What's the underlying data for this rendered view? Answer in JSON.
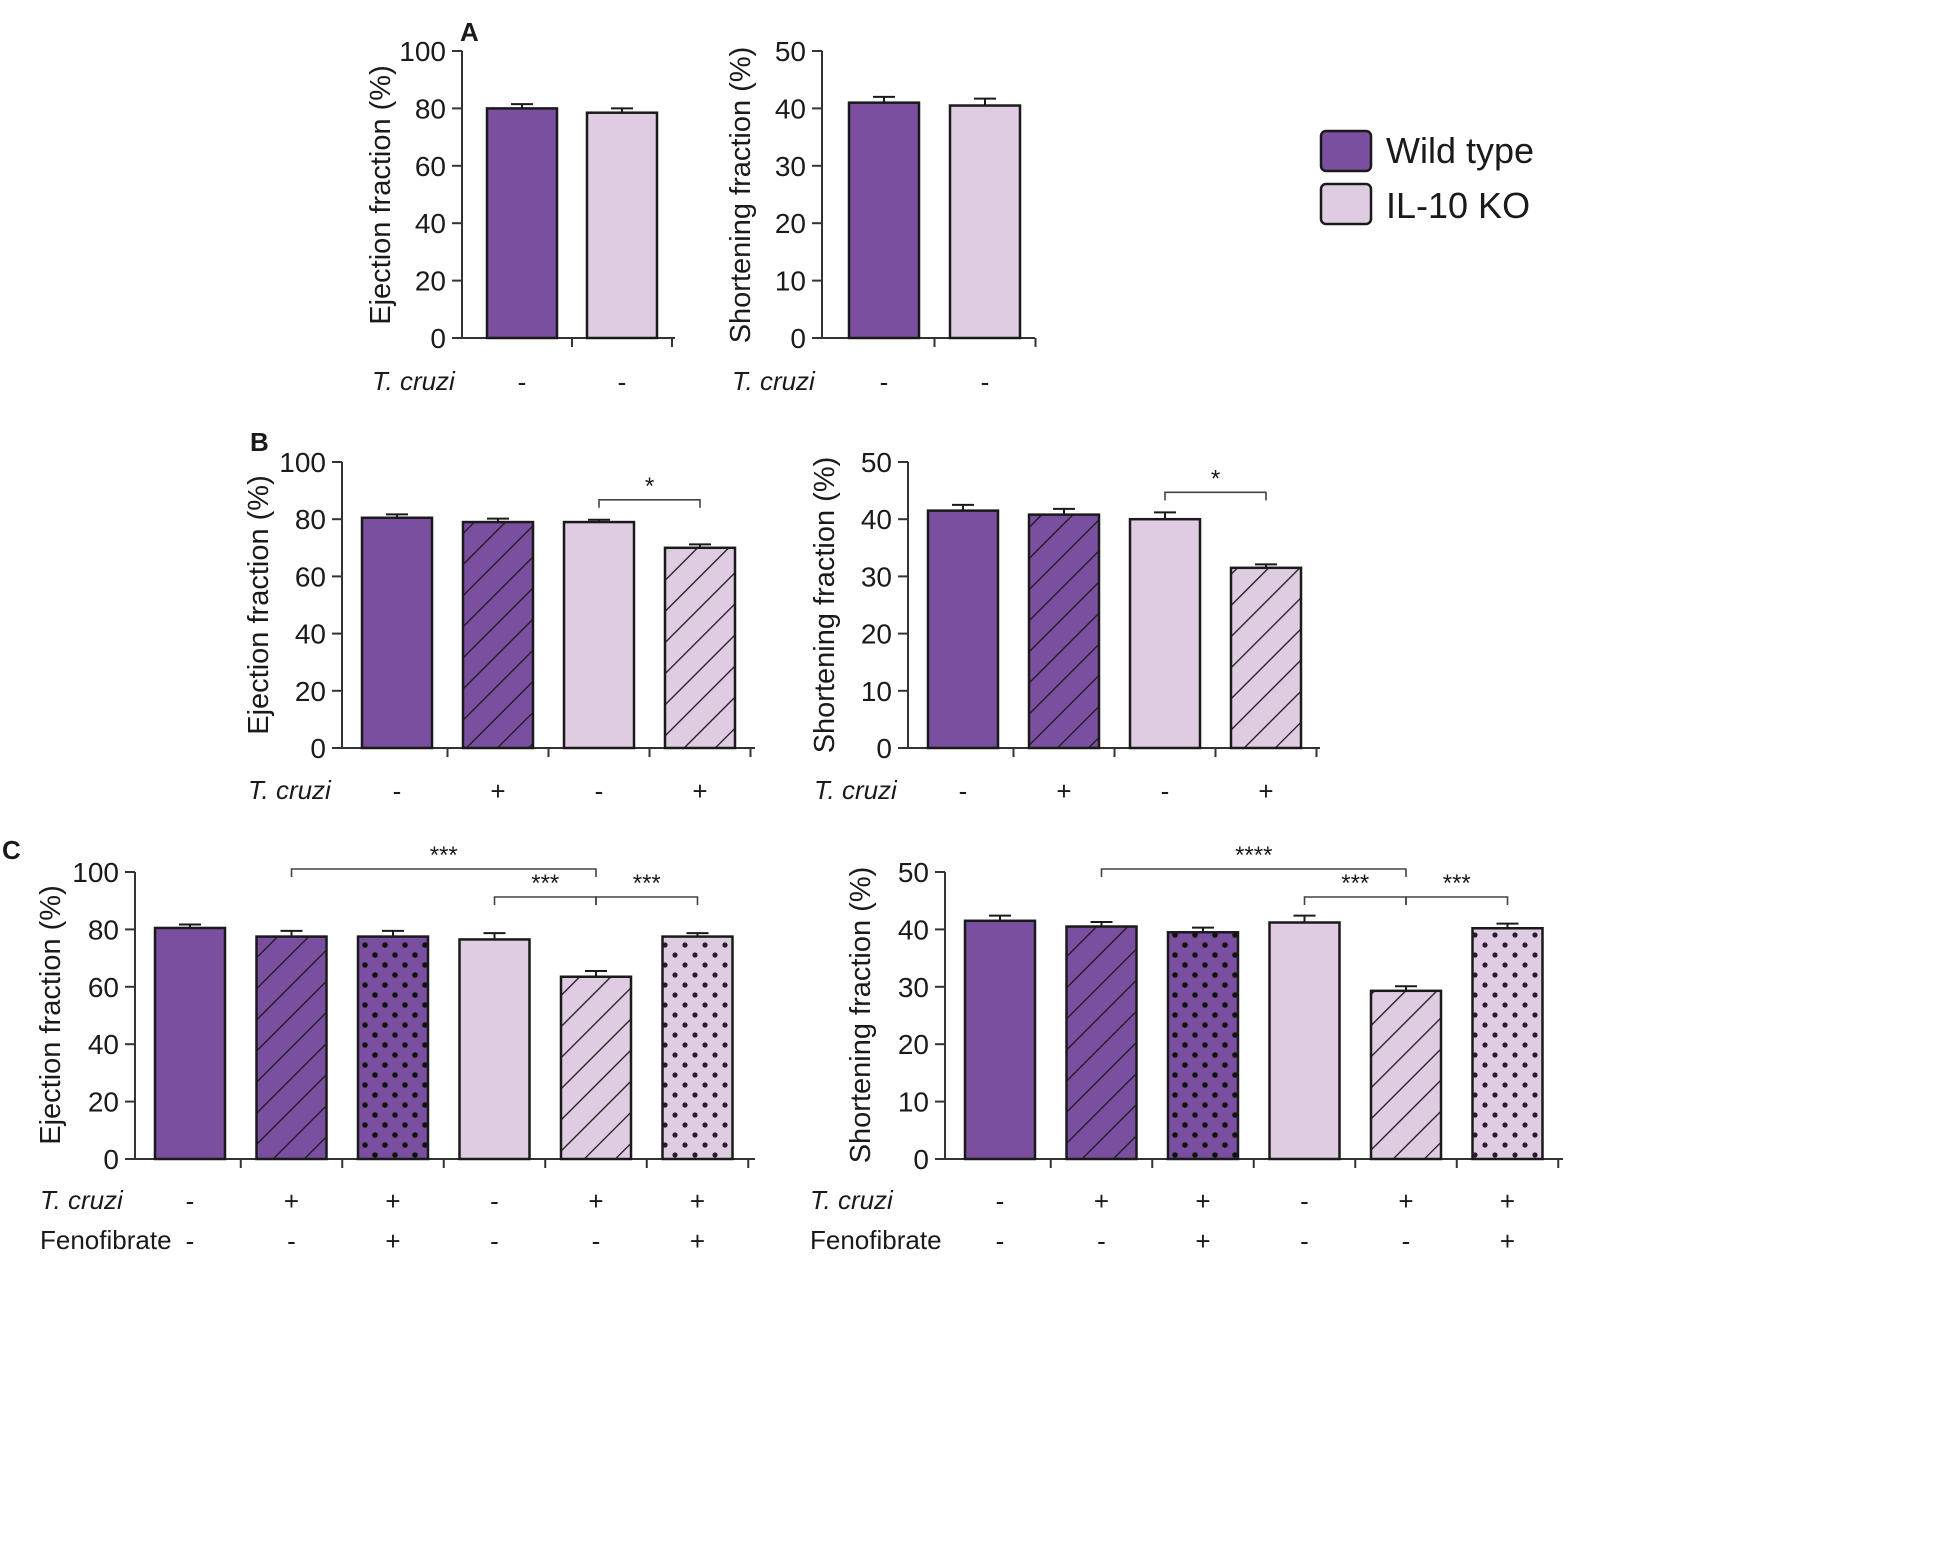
{
  "figure": {
    "colors": {
      "wild_type": "#7a4fa0",
      "il10_ko": "#e0cce2",
      "stroke": "#1a1a1a",
      "axis": "#333333"
    },
    "legend": {
      "items": [
        {
          "label": "Wild type",
          "color": "#7a4fa0"
        },
        {
          "label": "IL-10 KO",
          "color": "#e0cce2"
        }
      ]
    }
  },
  "chart_data": [
    {
      "panel": "A",
      "type": "bar",
      "ylabel": "Ejection fraction (%)",
      "ylim": [
        0,
        100
      ],
      "yticks": [
        0,
        20,
        40,
        60,
        80,
        100
      ],
      "bars": [
        {
          "value": 80,
          "error": 1.5,
          "fill": "#7a4fa0",
          "pattern": "solid"
        },
        {
          "value": 78.5,
          "error": 1.5,
          "fill": "#e0cce2",
          "pattern": "solid"
        }
      ],
      "rows": [
        {
          "label": "T. cruzi",
          "italic": true,
          "signs": [
            "-",
            "-"
          ]
        }
      ],
      "significance": []
    },
    {
      "panel": "",
      "type": "bar",
      "ylabel": "Shortening fraction (%)",
      "ylim": [
        0,
        50
      ],
      "yticks": [
        0,
        10,
        20,
        30,
        40,
        50
      ],
      "bars": [
        {
          "value": 41,
          "error": 1,
          "fill": "#7a4fa0",
          "pattern": "solid"
        },
        {
          "value": 40.5,
          "error": 1.2,
          "fill": "#e0cce2",
          "pattern": "solid"
        }
      ],
      "rows": [
        {
          "label": "T. cruzi",
          "italic": true,
          "signs": [
            "-",
            "-"
          ]
        }
      ],
      "significance": []
    },
    {
      "panel": "B",
      "type": "bar",
      "ylabel": "Ejection fraction (%)",
      "ylim": [
        0,
        100
      ],
      "yticks": [
        0,
        20,
        40,
        60,
        80,
        100
      ],
      "bars": [
        {
          "value": 80.5,
          "error": 1.2,
          "fill": "#7a4fa0",
          "pattern": "solid"
        },
        {
          "value": 79,
          "error": 1.2,
          "fill": "#7a4fa0",
          "pattern": "hatch"
        },
        {
          "value": 79,
          "error": 0.8,
          "fill": "#e0cce2",
          "pattern": "solid"
        },
        {
          "value": 70,
          "error": 1.2,
          "fill": "#e0cce2",
          "pattern": "hatch"
        }
      ],
      "rows": [
        {
          "label": "T. cruzi",
          "italic": true,
          "signs": [
            "-",
            "+",
            "-",
            "+"
          ]
        }
      ],
      "significance": [
        {
          "from": 2,
          "to": 3,
          "label": "*",
          "level": 1
        }
      ]
    },
    {
      "panel": "",
      "type": "bar",
      "ylabel": "Shortening fraction (%)",
      "ylim": [
        0,
        50
      ],
      "yticks": [
        0,
        10,
        20,
        30,
        40,
        50
      ],
      "bars": [
        {
          "value": 41.5,
          "error": 1,
          "fill": "#7a4fa0",
          "pattern": "solid"
        },
        {
          "value": 40.8,
          "error": 1,
          "fill": "#7a4fa0",
          "pattern": "hatch"
        },
        {
          "value": 40,
          "error": 1.2,
          "fill": "#e0cce2",
          "pattern": "solid"
        },
        {
          "value": 31.5,
          "error": 0.6,
          "fill": "#e0cce2",
          "pattern": "hatch"
        }
      ],
      "rows": [
        {
          "label": "T. cruzi",
          "italic": true,
          "signs": [
            "-",
            "+",
            "-",
            "+"
          ]
        }
      ],
      "significance": [
        {
          "from": 2,
          "to": 3,
          "label": "*",
          "level": 1
        }
      ]
    },
    {
      "panel": "C",
      "type": "bar",
      "ylabel": "Ejection fraction (%)",
      "ylim": [
        0,
        100
      ],
      "yticks": [
        0,
        20,
        40,
        60,
        80,
        100
      ],
      "bars": [
        {
          "value": 80.5,
          "error": 1.2,
          "fill": "#7a4fa0",
          "pattern": "solid"
        },
        {
          "value": 77.5,
          "error": 2,
          "fill": "#7a4fa0",
          "pattern": "hatch"
        },
        {
          "value": 77.5,
          "error": 2,
          "fill": "#7a4fa0",
          "pattern": "dots"
        },
        {
          "value": 76.5,
          "error": 2.2,
          "fill": "#e0cce2",
          "pattern": "solid"
        },
        {
          "value": 63.5,
          "error": 2,
          "fill": "#e0cce2",
          "pattern": "hatch"
        },
        {
          "value": 77.5,
          "error": 1.2,
          "fill": "#e0cce2",
          "pattern": "dots"
        }
      ],
      "rows": [
        {
          "label": "T. cruzi",
          "italic": true,
          "signs": [
            "-",
            "+",
            "+",
            "-",
            "+",
            "+"
          ]
        },
        {
          "label": "Fenofibrate",
          "italic": false,
          "signs": [
            "-",
            "-",
            "+",
            "-",
            "-",
            "+"
          ]
        }
      ],
      "significance": [
        {
          "from": 1,
          "to": 4,
          "label": "***",
          "level": 2
        },
        {
          "from": 3,
          "to": 4,
          "label": "***",
          "level": 1
        },
        {
          "from": 4,
          "to": 5,
          "label": "***",
          "level": 1
        }
      ]
    },
    {
      "panel": "",
      "type": "bar",
      "ylabel": "Shortening fraction (%)",
      "ylim": [
        0,
        50
      ],
      "yticks": [
        0,
        10,
        20,
        30,
        40,
        50
      ],
      "bars": [
        {
          "value": 41.5,
          "error": 0.9,
          "fill": "#7a4fa0",
          "pattern": "solid"
        },
        {
          "value": 40.5,
          "error": 0.8,
          "fill": "#7a4fa0",
          "pattern": "hatch"
        },
        {
          "value": 39.5,
          "error": 0.8,
          "fill": "#7a4fa0",
          "pattern": "dots"
        },
        {
          "value": 41.2,
          "error": 1.2,
          "fill": "#e0cce2",
          "pattern": "solid"
        },
        {
          "value": 29.3,
          "error": 0.8,
          "fill": "#e0cce2",
          "pattern": "hatch"
        },
        {
          "value": 40.2,
          "error": 0.8,
          "fill": "#e0cce2",
          "pattern": "dots"
        }
      ],
      "rows": [
        {
          "label": "T. cruzi",
          "italic": true,
          "signs": [
            "-",
            "+",
            "+",
            "-",
            "+",
            "+"
          ]
        },
        {
          "label": "Fenofibrate",
          "italic": false,
          "signs": [
            "-",
            "-",
            "+",
            "-",
            "-",
            "+"
          ]
        }
      ],
      "significance": [
        {
          "from": 1,
          "to": 4,
          "label": "****",
          "level": 2
        },
        {
          "from": 3,
          "to": 4,
          "label": "***",
          "level": 1
        },
        {
          "from": 4,
          "to": 5,
          "label": "***",
          "level": 1
        }
      ]
    }
  ]
}
